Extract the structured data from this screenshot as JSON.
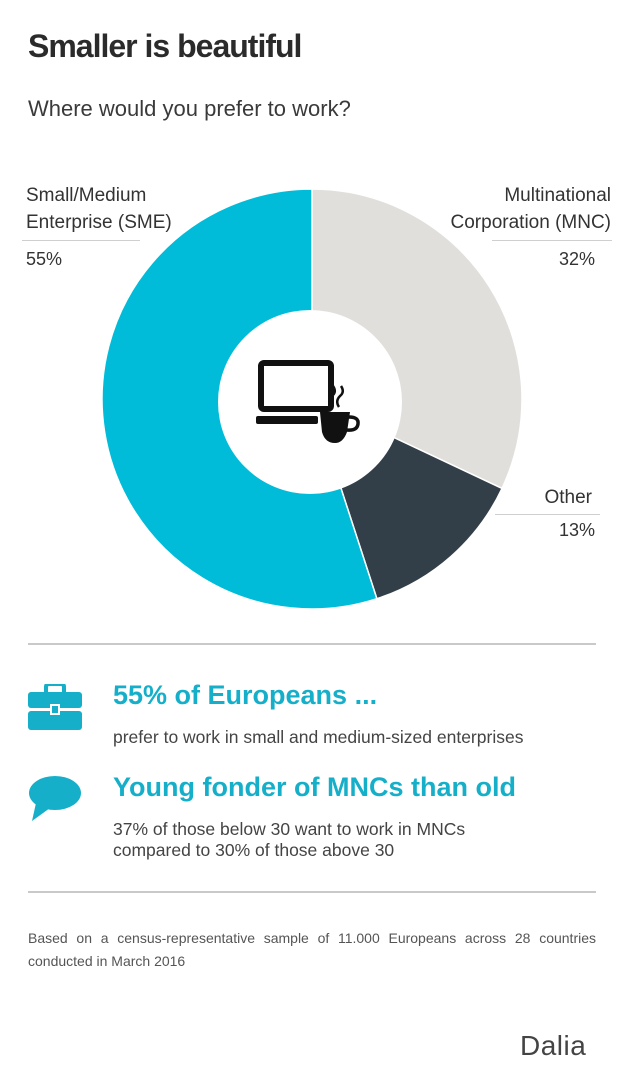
{
  "header": {
    "title": "Smaller is beautiful",
    "subtitle": "Where would you prefer to work?"
  },
  "chart_data": {
    "type": "pie",
    "donut": true,
    "slices": [
      {
        "name": "Multinational Corporation (MNC)",
        "label_line1": "Multinational",
        "label_line2": "Corporation (MNC)",
        "value": 32,
        "value_label": "32%",
        "color": "#e0dfdb"
      },
      {
        "name": "Other",
        "label_line1": "Other",
        "value": 13,
        "value_label": "13%",
        "color": "#333f48"
      },
      {
        "name": "Small/Medium Enterprise (SME)",
        "label_line1": "Small/Medium",
        "label_line2": "Enterprise (SME)",
        "value": 55,
        "value_label": "55%",
        "color": "#00bcd9"
      }
    ],
    "center_icon": "laptop-coffee-icon"
  },
  "highlights": [
    {
      "icon": "briefcase-icon",
      "heading": "55% of Europeans ...",
      "text_line1": "prefer to work in small and medium-sized enterprises"
    },
    {
      "icon": "speech-bubble-icon",
      "heading": "Young fonder of MNCs than old",
      "text_line1": "37% of those below 30 want to work in MNCs",
      "text_line2": "compared to 30% of those above 30"
    }
  ],
  "footer": {
    "note": "Based on a census-representative sample of 11.000 Europeans across 28 countries conducted in March 2016",
    "brand": "Dalia"
  },
  "colors": {
    "accent": "#16afc9",
    "sme": "#00bcd9",
    "mnc": "#e0dfdb",
    "other": "#333f48"
  }
}
